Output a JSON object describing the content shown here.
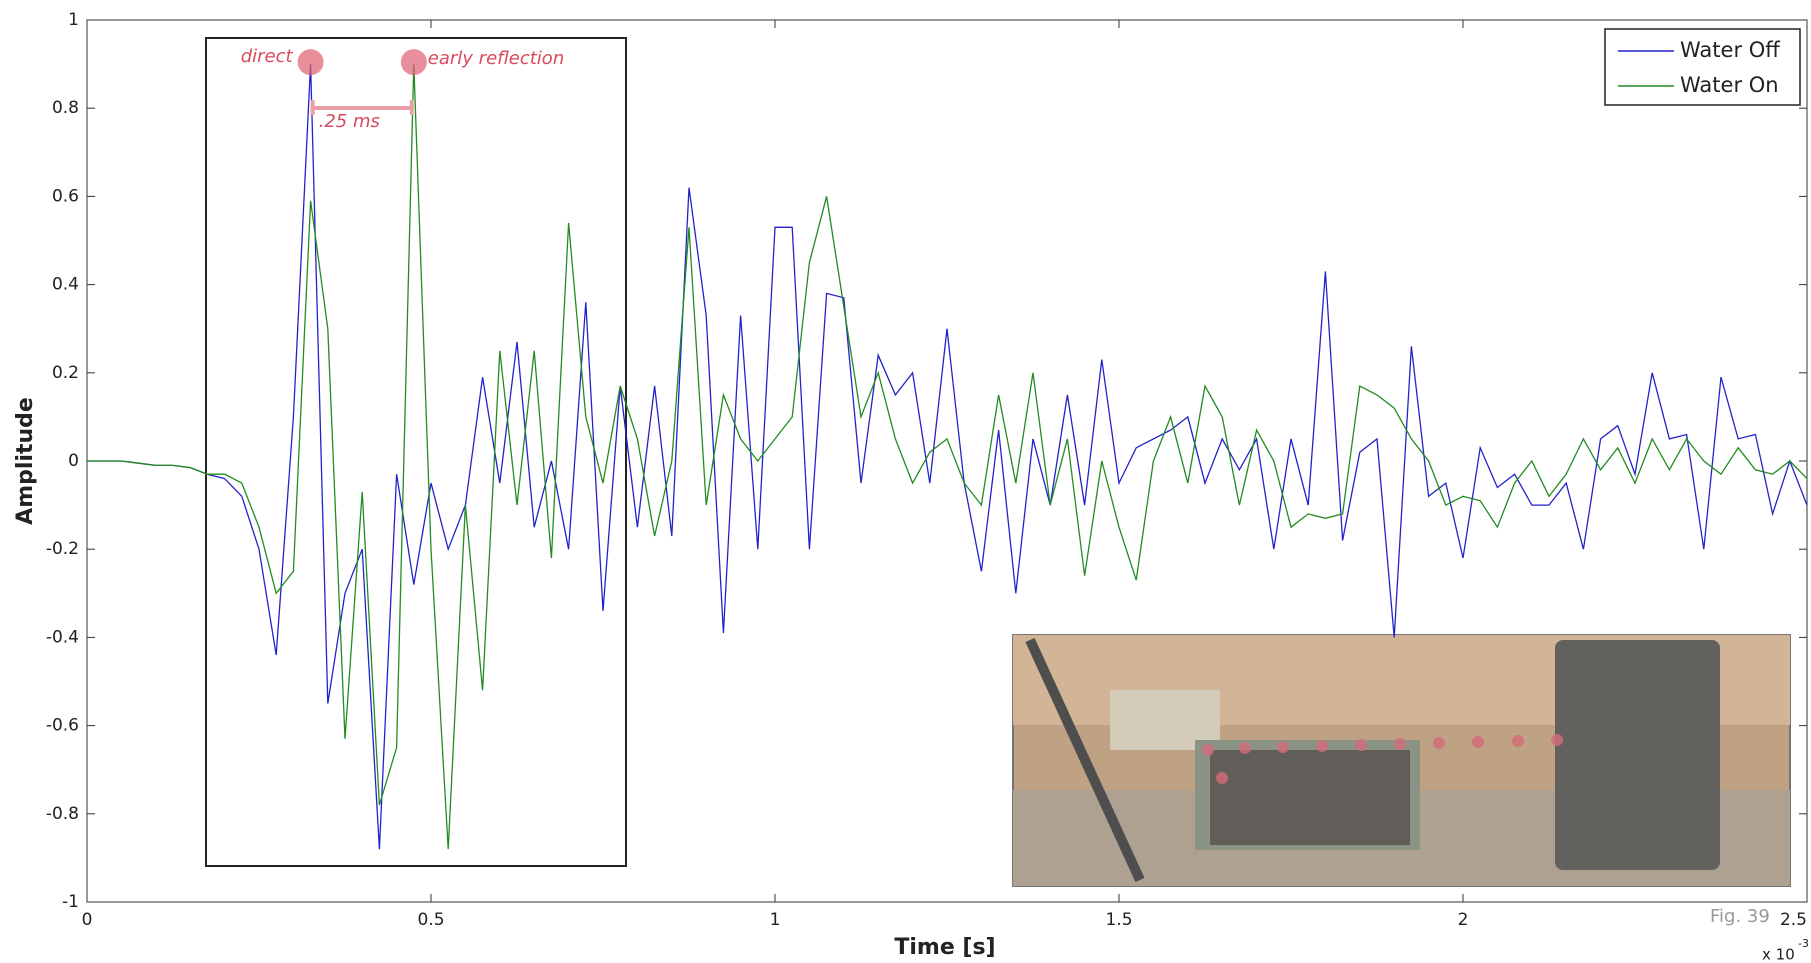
{
  "chart_data": {
    "type": "line",
    "x_label": "Time [s]",
    "y_label": "Amplitude",
    "x_multiplier": "x 10",
    "x_multiplier_exp": "-3",
    "xlim": [
      0,
      2.5
    ],
    "xticks": [
      0,
      0.5,
      1,
      1.5,
      2,
      2.5
    ],
    "ylim": [
      -1,
      1
    ],
    "yticks": [
      -1,
      -0.8,
      -0.6,
      -0.4,
      -0.2,
      0,
      0.2,
      0.4,
      0.6,
      0.8,
      1
    ],
    "legend": "upper right",
    "annotations": {
      "direct": "direct",
      "early": "early reflection",
      "gap": ".25 ms",
      "figure": "Fig. 39"
    },
    "x": [
      0,
      0.025,
      0.05,
      0.075,
      0.1,
      0.125,
      0.15,
      0.175,
      0.2,
      0.225,
      0.25,
      0.275,
      0.3,
      0.325,
      0.35,
      0.375,
      0.4,
      0.425,
      0.45,
      0.475,
      0.5,
      0.525,
      0.55,
      0.575,
      0.6,
      0.625,
      0.65,
      0.675,
      0.7,
      0.725,
      0.75,
      0.775,
      0.8,
      0.825,
      0.85,
      0.875,
      0.9,
      0.925,
      0.95,
      0.975,
      1,
      1.025,
      1.05,
      1.075,
      1.1,
      1.125,
      1.15,
      1.175,
      1.2,
      1.225,
      1.25,
      1.275,
      1.3,
      1.325,
      1.35,
      1.375,
      1.4,
      1.425,
      1.45,
      1.475,
      1.5,
      1.525,
      1.55,
      1.575,
      1.6,
      1.625,
      1.65,
      1.675,
      1.7,
      1.725,
      1.75,
      1.775,
      1.8,
      1.825,
      1.85,
      1.875,
      1.9,
      1.925,
      1.95,
      1.975,
      2,
      2.025,
      2.05,
      2.075,
      2.1,
      2.125,
      2.15,
      2.175,
      2.2,
      2.225,
      2.25,
      2.275,
      2.3,
      2.325,
      2.35,
      2.375,
      2.4,
      2.425,
      2.45,
      2.475,
      2.5
    ],
    "series": [
      {
        "name": "Water Off",
        "color": "#2222cc",
        "values": [
          0,
          0,
          0,
          -0.005,
          -0.01,
          -0.01,
          -0.015,
          -0.03,
          -0.04,
          -0.08,
          -0.2,
          -0.44,
          0.1,
          0.9,
          -0.55,
          -0.3,
          -0.2,
          -0.88,
          -0.03,
          -0.28,
          -0.05,
          -0.2,
          -0.1,
          0.19,
          -0.05,
          0.27,
          -0.15,
          0,
          -0.2,
          0.36,
          -0.34,
          0.17,
          -0.15,
          0.17,
          -0.17,
          0.62,
          0.33,
          -0.39,
          0.33,
          -0.2,
          0.53,
          0.53,
          -0.2,
          0.38,
          0.37,
          -0.05,
          0.24,
          0.15,
          0.2,
          -0.05,
          0.3,
          -0.05,
          -0.25,
          0.07,
          -0.3,
          0.05,
          -0.1,
          0.15,
          -0.1,
          0.23,
          -0.05,
          0.03,
          0.05,
          0.07,
          0.1,
          -0.05,
          0.05,
          -0.02,
          0.05,
          -0.2,
          0.05,
          -0.1,
          0.43,
          -0.18,
          0.02,
          0.05,
          -0.4,
          0.26,
          -0.08,
          -0.05,
          -0.22,
          0.03,
          -0.06,
          -0.03,
          -0.1,
          -0.1,
          -0.05,
          -0.2,
          0.05,
          0.08,
          -0.03,
          0.2,
          0.05,
          0.06,
          -0.2,
          0.19,
          0.05,
          0.06,
          -0.12,
          0,
          -0.1
        ]
      },
      {
        "name": "Water On",
        "color": "#228b22",
        "values": [
          0,
          0,
          0,
          -0.005,
          -0.01,
          -0.01,
          -0.015,
          -0.03,
          -0.03,
          -0.05,
          -0.15,
          -0.3,
          -0.25,
          0.59,
          0.3,
          -0.63,
          -0.07,
          -0.78,
          -0.65,
          0.9,
          -0.2,
          -0.88,
          -0.1,
          -0.52,
          0.25,
          -0.1,
          0.25,
          -0.22,
          0.54,
          0.1,
          -0.05,
          0.17,
          0.05,
          -0.17,
          0,
          0.53,
          -0.1,
          0.15,
          0.05,
          0,
          0.05,
          0.1,
          0.45,
          0.6,
          0.35,
          0.1,
          0.2,
          0.05,
          -0.05,
          0.02,
          0.05,
          -0.05,
          -0.1,
          0.15,
          -0.05,
          0.2,
          -0.1,
          0.05,
          -0.26,
          0,
          -0.15,
          -0.27,
          0,
          0.1,
          -0.05,
          0.17,
          0.1,
          -0.1,
          0.07,
          0,
          -0.15,
          -0.12,
          -0.13,
          -0.12,
          0.17,
          0.15,
          0.12,
          0.05,
          0,
          -0.1,
          -0.08,
          -0.09,
          -0.15,
          -0.05,
          0,
          -0.08,
          -0.03,
          0.05,
          -0.02,
          0.03,
          -0.05,
          0.05,
          -0.02,
          0.05,
          0,
          -0.03,
          0.03,
          -0.02,
          -0.03,
          0,
          -0.04
        ]
      }
    ]
  }
}
